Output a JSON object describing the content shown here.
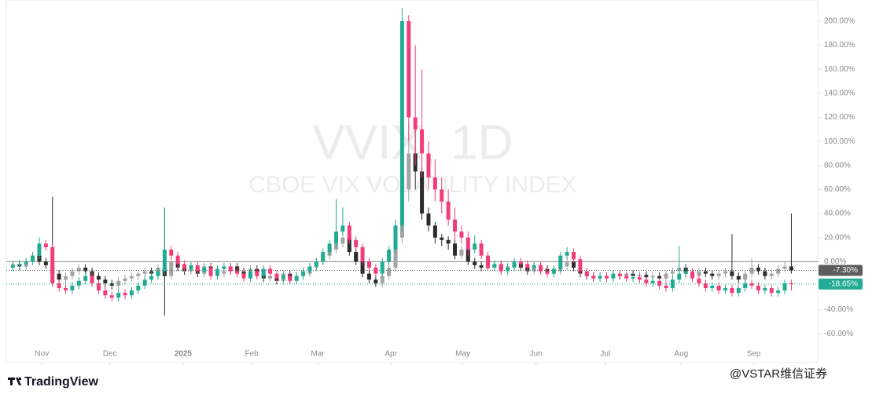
{
  "chart_data": {
    "type": "candlestick",
    "title": "VVIX, 1D",
    "subtitle": "CBOE VIX VOLATILITY INDEX",
    "xlim": [
      -1,
      122
    ],
    "ylim": [
      -84,
      217.6
    ],
    "xticks": [
      {
        "value": 4.4,
        "label": "Nov"
      },
      {
        "value": 14.7,
        "label": "Dec"
      },
      {
        "value": 25.8,
        "label": "2025"
      },
      {
        "value": 36.2,
        "label": "Feb"
      },
      {
        "value": 46.2,
        "label": "Mar"
      },
      {
        "value": 57.3,
        "label": "Apr"
      },
      {
        "value": 68.2,
        "label": "May"
      },
      {
        "value": 79.3,
        "label": "Jun"
      },
      {
        "value": 89.8,
        "label": "Jul"
      },
      {
        "value": 101.3,
        "label": "Aug"
      },
      {
        "value": 112.3,
        "label": "Sep"
      }
    ],
    "yticks": [
      {
        "value": -60,
        "label": "-60.00%"
      },
      {
        "value": -40,
        "label": "-40.00%"
      },
      {
        "value": -20,
        "label": "-20.00%"
      },
      {
        "value": 0,
        "label": "0.00%"
      },
      {
        "value": 20,
        "label": "20.00%"
      },
      {
        "value": 40,
        "label": "40.00%"
      },
      {
        "value": 60,
        "label": "60.00%"
      },
      {
        "value": 80,
        "label": "80.00%"
      },
      {
        "value": 100,
        "label": "100.00%"
      },
      {
        "value": 120,
        "label": "120.00%"
      },
      {
        "value": 140,
        "label": "140.00%"
      },
      {
        "value": 160,
        "label": "160.00%"
      },
      {
        "value": 180,
        "label": "180.00%"
      },
      {
        "value": 200,
        "label": "200.00%"
      }
    ],
    "series": [
      {
        "color_up": "#a3a3a3",
        "color_down": "#2b2b2b",
        "last_value_label": "-7.30%",
        "label_color": "#5d5d5d",
        "open": [
          -3,
          -2,
          -4,
          0,
          5,
          0,
          -3,
          -10,
          -15,
          -12,
          -8,
          -5,
          -8,
          -12,
          -15,
          -18,
          -20,
          -16,
          -14,
          -12,
          -10,
          -8,
          -10,
          -5,
          -12,
          0,
          -5,
          -8,
          -6,
          -10,
          -4,
          -6,
          -10,
          -8,
          -4,
          -8,
          -12,
          -6,
          -10,
          -14,
          -12,
          -16,
          -10,
          -14,
          -12,
          -10,
          -5,
          0,
          5,
          10,
          15,
          20,
          8,
          0,
          -10,
          -15,
          -18,
          -12,
          -5,
          20,
          60,
          90,
          75,
          40,
          30,
          20,
          18,
          15,
          5,
          10,
          0,
          -3,
          -5,
          -5,
          -3,
          -6,
          -4,
          -2,
          -5,
          -8,
          -4,
          -6,
          -10,
          -8,
          -4,
          0,
          -5,
          -10,
          -12,
          -13,
          -12,
          -13,
          -11,
          -12,
          -10,
          -12,
          -11,
          -13,
          -12,
          -14,
          -10,
          -8,
          -5,
          -10,
          -12,
          -8,
          -10,
          -12,
          -10,
          -8,
          -12,
          -15,
          -10,
          -5,
          -8,
          -12,
          -10,
          -6,
          -4
        ],
        "high": [
          1,
          1,
          3,
          8,
          8,
          3,
          54,
          -7,
          -9,
          -5,
          -2,
          -2,
          -5,
          -9,
          -12,
          -15,
          -13,
          -11,
          -9,
          -7,
          -5,
          -5,
          -2,
          45,
          3,
          3,
          -2,
          -3,
          -3,
          -1,
          -1,
          -3,
          -5,
          -1,
          -1,
          -5,
          -3,
          -3,
          -7,
          -9,
          -9,
          -7,
          -7,
          -9,
          -7,
          -2,
          3,
          8,
          13,
          25,
          28,
          23,
          11,
          3,
          -7,
          -12,
          -9,
          -2,
          25,
          70,
          115,
          110,
          80,
          45,
          33,
          23,
          21,
          18,
          13,
          13,
          3,
          0,
          -2,
          0,
          0,
          -1,
          1,
          1,
          -2,
          -1,
          -1,
          -3,
          -5,
          -1,
          3,
          3,
          -2,
          -7,
          -9,
          -9,
          -9,
          -8,
          -8,
          -7,
          -7,
          -8,
          -8,
          -9,
          -9,
          -7,
          -5,
          -2,
          -2,
          -7,
          -5,
          -5,
          -7,
          -7,
          -5,
          23,
          -9,
          -7,
          3,
          -2,
          -5,
          -7,
          -3,
          0,
          40
        ],
        "low": [
          -6,
          -7,
          -7,
          -3,
          -3,
          -6,
          -13,
          -18,
          -18,
          -15,
          -11,
          -11,
          -15,
          -18,
          -21,
          -23,
          -23,
          -19,
          -17,
          -15,
          -13,
          -13,
          -13,
          -45,
          -15,
          -8,
          -11,
          -11,
          -13,
          -13,
          -9,
          -13,
          -13,
          -11,
          -11,
          -15,
          -15,
          -13,
          -17,
          -17,
          -19,
          -19,
          -17,
          -17,
          -15,
          -13,
          -8,
          -3,
          2,
          7,
          12,
          5,
          -3,
          -13,
          -18,
          -21,
          -21,
          -15,
          -8,
          15,
          50,
          60,
          35,
          25,
          15,
          13,
          10,
          2,
          2,
          -3,
          -6,
          -8,
          -8,
          -8,
          -9,
          -9,
          -7,
          -8,
          -11,
          -11,
          -9,
          -13,
          -13,
          -11,
          -7,
          -8,
          -13,
          -15,
          -16,
          -16,
          -16,
          -16,
          -15,
          -15,
          -15,
          -15,
          -16,
          -16,
          -17,
          -17,
          -13,
          -11,
          -13,
          -15,
          -15,
          -13,
          -15,
          -15,
          -13,
          -15,
          -18,
          -18,
          -13,
          -11,
          -15,
          -15,
          -13,
          -9,
          -10
        ],
        "close": [
          -2,
          -4,
          0,
          5,
          0,
          -3,
          -10,
          -15,
          -12,
          -8,
          -5,
          -8,
          -12,
          -15,
          -18,
          -20,
          -16,
          -14,
          -12,
          -10,
          -8,
          -10,
          -5,
          -12,
          0,
          -5,
          -8,
          -6,
          -10,
          -4,
          -6,
          -10,
          -8,
          -4,
          -8,
          -12,
          -6,
          -10,
          -14,
          -12,
          -16,
          -10,
          -14,
          -12,
          -10,
          -5,
          0,
          5,
          10,
          15,
          20,
          8,
          0,
          -10,
          -15,
          -18,
          -12,
          -5,
          20,
          60,
          90,
          75,
          40,
          30,
          20,
          18,
          15,
          5,
          10,
          0,
          -3,
          -5,
          -5,
          -3,
          -6,
          -4,
          -2,
          -5,
          -8,
          -4,
          -6,
          -10,
          -8,
          -4,
          0,
          -5,
          -10,
          -12,
          -13,
          -12,
          -13,
          -11,
          -12,
          -10,
          -12,
          -11,
          -13,
          -12,
          -14,
          -10,
          -8,
          -5,
          -10,
          -12,
          -8,
          -10,
          -12,
          -10,
          -8,
          -12,
          -15,
          -10,
          -5,
          -8,
          -12,
          -10,
          -6,
          -4,
          -7.3
        ]
      },
      {
        "color_up": "#22ab94",
        "color_down": "#f23c7a",
        "last_value_label": "-18.65%",
        "label_color": "#22ab94",
        "open": [
          -5,
          -3,
          -2,
          0,
          5,
          15,
          12,
          -18,
          -22,
          -24,
          -20,
          -16,
          -12,
          -18,
          -24,
          -28,
          -30,
          -26,
          -28,
          -24,
          -20,
          -15,
          -12,
          -8,
          10,
          5,
          -2,
          -6,
          -3,
          -8,
          -5,
          -12,
          -6,
          -4,
          -8,
          -10,
          -14,
          -8,
          -12,
          -6,
          -10,
          -14,
          -12,
          -16,
          -12,
          -8,
          -4,
          0,
          8,
          15,
          25,
          30,
          18,
          12,
          0,
          -5,
          -10,
          0,
          10,
          30,
          200,
          120,
          110,
          90,
          70,
          60,
          50,
          35,
          25,
          20,
          10,
          15,
          5,
          -5,
          -2,
          -8,
          -5,
          0,
          -2,
          -5,
          -3,
          -8,
          -10,
          -6,
          5,
          8,
          2,
          -8,
          -12,
          -14,
          -12,
          -14,
          -10,
          -12,
          -14,
          -13,
          -15,
          -18,
          -16,
          -20,
          -22,
          -15,
          -10,
          -8,
          -14,
          -18,
          -22,
          -20,
          -24,
          -22,
          -26,
          -22,
          -18,
          -20,
          -24,
          -22,
          -26,
          -24,
          -18
        ],
        "high": [
          0,
          1,
          3,
          8,
          20,
          18,
          15,
          -15,
          -19,
          -17,
          -13,
          -9,
          -9,
          -15,
          -21,
          -25,
          -23,
          -23,
          -21,
          -17,
          -12,
          -9,
          -5,
          45,
          13,
          8,
          1,
          0,
          0,
          -2,
          -2,
          -3,
          -1,
          -1,
          -5,
          -7,
          -5,
          -5,
          -3,
          -3,
          -7,
          -9,
          -9,
          -9,
          -5,
          -1,
          3,
          11,
          18,
          52,
          45,
          33,
          21,
          15,
          3,
          -2,
          3,
          13,
          35,
          211,
          205,
          180,
          160,
          100,
          85,
          70,
          60,
          45,
          30,
          25,
          22,
          18,
          8,
          1,
          1,
          -2,
          3,
          3,
          1,
          0,
          0,
          -5,
          -3,
          8,
          12,
          11,
          5,
          -5,
          -9,
          -9,
          -9,
          -7,
          -7,
          -9,
          -10,
          -10,
          -12,
          -13,
          -13,
          -17,
          -12,
          13,
          -5,
          -5,
          -11,
          -15,
          -17,
          -17,
          -19,
          -19,
          -19,
          -15,
          -15,
          -17,
          -19,
          -19,
          -21,
          -15,
          -15
        ],
        "low": [
          -8,
          -6,
          -5,
          -3,
          2,
          9,
          -21,
          -25,
          -27,
          -27,
          -23,
          -19,
          -21,
          -27,
          -31,
          -33,
          -33,
          -31,
          -31,
          -27,
          -23,
          -18,
          -15,
          -11,
          2,
          -5,
          -9,
          -9,
          -11,
          -11,
          -15,
          -15,
          -9,
          -11,
          -13,
          -17,
          -17,
          -15,
          -15,
          -13,
          -17,
          -17,
          -19,
          -19,
          -15,
          -11,
          -7,
          -3,
          5,
          12,
          22,
          15,
          9,
          -3,
          -8,
          -13,
          -13,
          -3,
          7,
          25,
          100,
          80,
          70,
          60,
          50,
          40,
          30,
          18,
          15,
          5,
          7,
          2,
          -8,
          -8,
          -11,
          -11,
          -8,
          -5,
          -8,
          -8,
          -11,
          -13,
          -13,
          -9,
          2,
          -1,
          -11,
          -15,
          -17,
          -17,
          -17,
          -17,
          -15,
          -17,
          -17,
          -18,
          -21,
          -21,
          -23,
          -25,
          -25,
          -18,
          -13,
          -17,
          -21,
          -25,
          -25,
          -27,
          -27,
          -29,
          -29,
          -25,
          -23,
          -27,
          -27,
          -29,
          -29,
          -27,
          -24
        ],
        "close": [
          -3,
          -2,
          0,
          5,
          15,
          12,
          -18,
          -22,
          -24,
          -20,
          -16,
          -12,
          -18,
          -24,
          -28,
          -30,
          -26,
          -28,
          -24,
          -20,
          -15,
          -12,
          -8,
          10,
          5,
          -2,
          -6,
          -3,
          -8,
          -5,
          -12,
          -6,
          -4,
          -8,
          -10,
          -14,
          -8,
          -12,
          -6,
          -10,
          -14,
          -12,
          -16,
          -12,
          -8,
          -4,
          0,
          8,
          15,
          25,
          30,
          18,
          12,
          0,
          -5,
          -10,
          0,
          10,
          30,
          200,
          120,
          110,
          90,
          70,
          60,
          50,
          35,
          25,
          20,
          10,
          15,
          5,
          -5,
          -2,
          -8,
          -5,
          0,
          -2,
          -5,
          -3,
          -8,
          -10,
          -6,
          5,
          8,
          2,
          -8,
          -12,
          -14,
          -12,
          -14,
          -10,
          -12,
          -14,
          -13,
          -15,
          -18,
          -16,
          -20,
          -22,
          -15,
          -10,
          -8,
          -14,
          -18,
          -22,
          -20,
          -24,
          -22,
          -26,
          -22,
          -18,
          -20,
          -24,
          -22,
          -26,
          -24,
          -18,
          -18.65
        ]
      }
    ]
  },
  "footer": {
    "brand": "TradingView",
    "watermark": "@VSTAR维信证券"
  }
}
